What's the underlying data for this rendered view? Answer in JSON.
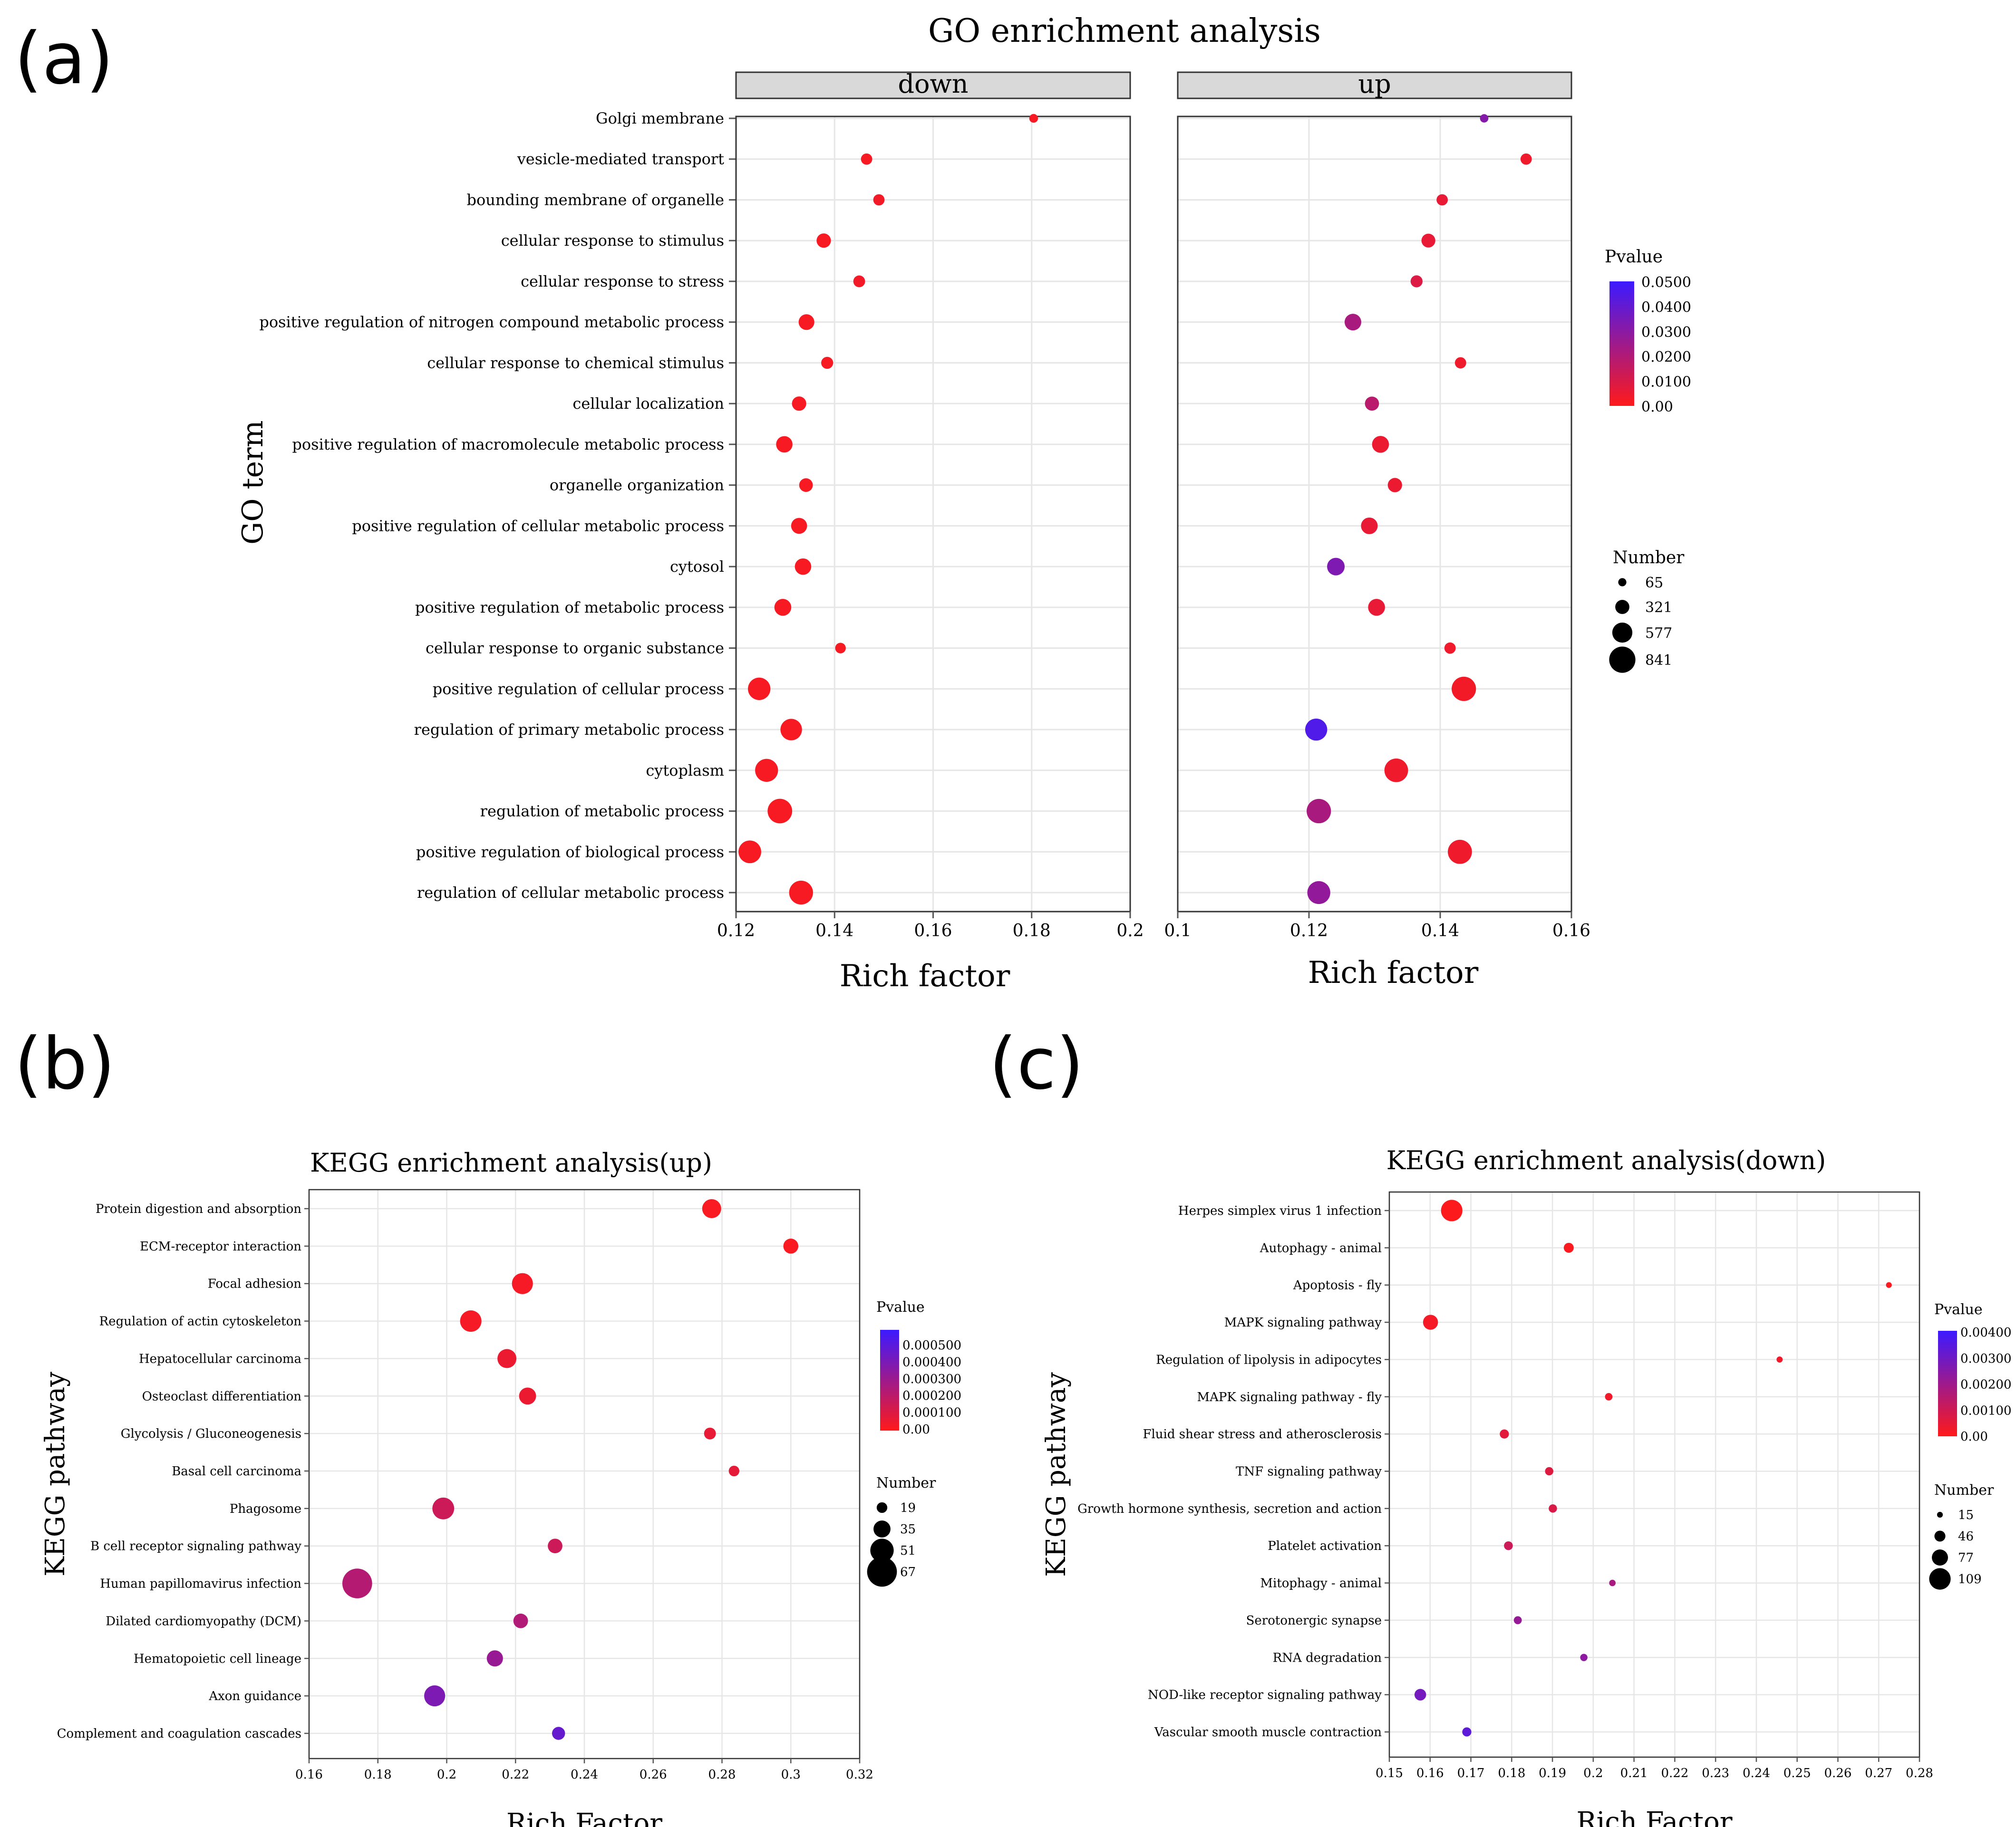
{
  "panel_labels": [
    "(a)",
    "(b)",
    "(c)"
  ],
  "colors": {
    "low_p": "#ff1a1a",
    "high_p": "#3c1aff",
    "strip_bg": "#d9d9d9",
    "grid": "#e6e6e6"
  },
  "chart_data": [
    {
      "type": "scatter",
      "title": "GO enrichment analysis",
      "ylabel": "GO term",
      "xlabel": "Rich factor",
      "facets": [
        {
          "name": "down",
          "xlim": [
            0.12,
            0.2
          ],
          "xticks": [
            0.12,
            0.14,
            0.16,
            0.18,
            0.2
          ],
          "xtick_labels": [
            "0.12",
            "0.14",
            "0.16",
            "0.18",
            "0.2"
          ],
          "points": [
            {
              "term": "Golgi membrane",
              "x": 0.1804,
              "number": 90,
              "p": 0.002
            },
            {
              "term": "vesicle-mediated transport",
              "x": 0.1465,
              "number": 200,
              "p": 0.002
            },
            {
              "term": "bounding membrane of organelle",
              "x": 0.149,
              "number": 200,
              "p": 0.003
            },
            {
              "term": "cellular response to stimulus",
              "x": 0.1378,
              "number": 330,
              "p": 0.002
            },
            {
              "term": "cellular response to stress",
              "x": 0.145,
              "number": 220,
              "p": 0.003
            },
            {
              "term": "positive regulation of nitrogen compound metabolic process",
              "x": 0.1343,
              "number": 390,
              "p": 0.002
            },
            {
              "term": "cellular response to chemical stimulus",
              "x": 0.1385,
              "number": 230,
              "p": 0.002
            },
            {
              "term": "cellular localization",
              "x": 0.1328,
              "number": 330,
              "p": 0.002
            },
            {
              "term": "positive regulation of macromolecule metabolic process",
              "x": 0.1298,
              "number": 420,
              "p": 0.002
            },
            {
              "term": "organelle organization",
              "x": 0.1342,
              "number": 300,
              "p": 0.002
            },
            {
              "term": "positive regulation of cellular metabolic process",
              "x": 0.1328,
              "number": 400,
              "p": 0.002
            },
            {
              "term": "cytosol",
              "x": 0.1336,
              "number": 420,
              "p": 0.002
            },
            {
              "term": "positive regulation of metabolic process",
              "x": 0.1295,
              "number": 440,
              "p": 0.002
            },
            {
              "term": "cellular response to organic substance",
              "x": 0.1412,
              "number": 170,
              "p": 0.002
            },
            {
              "term": "positive regulation of cellular process",
              "x": 0.1247,
              "number": 680,
              "p": 0.002
            },
            {
              "term": "regulation of primary metabolic process",
              "x": 0.1312,
              "number": 640,
              "p": 0.002
            },
            {
              "term": "cytoplasm",
              "x": 0.1262,
              "number": 700,
              "p": 0.002
            },
            {
              "term": "regulation of metabolic process",
              "x": 0.1289,
              "number": 770,
              "p": 0.002
            },
            {
              "term": "positive regulation of biological process",
              "x": 0.1228,
              "number": 690,
              "p": 0.002
            },
            {
              "term": "regulation of cellular metabolic process",
              "x": 0.1332,
              "number": 740,
              "p": 0.002
            }
          ]
        },
        {
          "name": "up",
          "xlim": [
            0.1,
            0.16
          ],
          "xticks": [
            0.1,
            0.12,
            0.14,
            0.16
          ],
          "xtick_labels": [
            "0.1",
            "0.12",
            "0.14",
            "0.16"
          ],
          "points": [
            {
              "term": "Golgi membrane",
              "x": 0.1467,
              "number": 75,
              "p": 0.031
            },
            {
              "term": "vesicle-mediated transport",
              "x": 0.1531,
              "number": 200,
              "p": 0.004
            },
            {
              "term": "bounding membrane of organelle",
              "x": 0.1403,
              "number": 200,
              "p": 0.006
            },
            {
              "term": "cellular response to stimulus",
              "x": 0.1382,
              "number": 310,
              "p": 0.006
            },
            {
              "term": "cellular response to stress",
              "x": 0.1364,
              "number": 230,
              "p": 0.009
            },
            {
              "term": "positive regulation of nitrogen compound metabolic process",
              "x": 0.1267,
              "number": 430,
              "p": 0.022
            },
            {
              "term": "cellular response to chemical stimulus",
              "x": 0.1431,
              "number": 200,
              "p": 0.004
            },
            {
              "term": "cellular localization",
              "x": 0.1296,
              "number": 320,
              "p": 0.018
            },
            {
              "term": "positive regulation of macromolecule metabolic process",
              "x": 0.1309,
              "number": 440,
              "p": 0.005
            },
            {
              "term": "organelle organization",
              "x": 0.1331,
              "number": 330,
              "p": 0.005
            },
            {
              "term": "positive regulation of cellular metabolic process",
              "x": 0.1292,
              "number": 430,
              "p": 0.006
            },
            {
              "term": "cytosol",
              "x": 0.1241,
              "number": 470,
              "p": 0.033
            },
            {
              "term": "positive regulation of metabolic process",
              "x": 0.1303,
              "number": 440,
              "p": 0.006
            },
            {
              "term": "cellular response to organic substance",
              "x": 0.1415,
              "number": 200,
              "p": 0.004
            },
            {
              "term": "positive regulation of cellular process",
              "x": 0.1436,
              "number": 760,
              "p": 0.003
            },
            {
              "term": "regulation of primary metabolic process",
              "x": 0.1211,
              "number": 660,
              "p": 0.045
            },
            {
              "term": "cytoplasm",
              "x": 0.1333,
              "number": 730,
              "p": 0.004
            },
            {
              "term": "regulation of metabolic process",
              "x": 0.1215,
              "number": 760,
              "p": 0.022
            },
            {
              "term": "positive regulation of biological process",
              "x": 0.143,
              "number": 750,
              "p": 0.004
            },
            {
              "term": "regulation of cellular metabolic process",
              "x": 0.1215,
              "number": 700,
              "p": 0.028
            }
          ]
        }
      ],
      "legend": {
        "color_title": "Pvalue",
        "color_range": [
          0,
          0.05
        ],
        "color_labels": [
          "0.0500",
          "0.0400",
          "0.0300",
          "0.0200",
          "0.0100",
          "0.00"
        ],
        "size_title": "Number",
        "size_values": [
          65,
          321,
          577,
          841
        ],
        "size_labels": [
          "65",
          "321",
          "577",
          "841"
        ]
      }
    },
    {
      "type": "scatter",
      "title": "KEGG enrichment analysis(up)",
      "ylabel": "KEGG pathway",
      "xlabel": "Rich Factor",
      "xlim": [
        0.16,
        0.32
      ],
      "xticks": [
        0.16,
        0.18,
        0.2,
        0.22,
        0.24,
        0.26,
        0.28,
        0.3,
        0.32
      ],
      "xtick_labels": [
        "0.16",
        "0.18",
        "0.2",
        "0.22",
        "0.24",
        "0.26",
        "0.28",
        "0.3",
        "0.32"
      ],
      "points": [
        {
          "term": "Protein digestion and absorption",
          "x": 0.277,
          "number": 40,
          "p": 2e-05
        },
        {
          "term": "ECM-receptor interaction",
          "x": 0.3,
          "number": 30,
          "p": 2e-05
        },
        {
          "term": "Focal adhesion",
          "x": 0.222,
          "number": 45,
          "p": 3e-05
        },
        {
          "term": "Regulation of actin cytoskeleton",
          "x": 0.207,
          "number": 46,
          "p": 3e-05
        },
        {
          "term": "Hepatocellular carcinoma",
          "x": 0.2175,
          "number": 40,
          "p": 6e-05
        },
        {
          "term": "Osteoclast differentiation",
          "x": 0.2235,
          "number": 35,
          "p": 6e-05
        },
        {
          "term": "Glycolysis / Gluconeogenesis",
          "x": 0.2765,
          "number": 22,
          "p": 7e-05
        },
        {
          "term": "Basal cell carcinoma",
          "x": 0.2835,
          "number": 19,
          "p": 8e-05
        },
        {
          "term": "Phagosome",
          "x": 0.199,
          "number": 47,
          "p": 0.00016
        },
        {
          "term": "B cell receptor signaling pathway",
          "x": 0.2315,
          "number": 29,
          "p": 0.00016
        },
        {
          "term": "Human papillomavirus infection",
          "x": 0.174,
          "number": 67,
          "p": 0.00023
        },
        {
          "term": "Dilated cardiomyopathy (DCM)",
          "x": 0.2215,
          "number": 29,
          "p": 0.00024
        },
        {
          "term": "Hematopoietic cell lineage",
          "x": 0.214,
          "number": 33,
          "p": 0.00032
        },
        {
          "term": "Axon guidance",
          "x": 0.1965,
          "number": 45,
          "p": 0.0004
        },
        {
          "term": "Complement and coagulation cascades",
          "x": 0.2325,
          "number": 25,
          "p": 0.00047
        }
      ],
      "legend": {
        "color_title": "Pvalue",
        "color_range": [
          0,
          0.0006
        ],
        "color_labels": [
          "0.000500",
          "0.000400",
          "0.000300",
          "0.000200",
          "0.000100",
          "0.00"
        ],
        "size_title": "Number",
        "size_values": [
          19,
          35,
          51,
          67
        ],
        "size_labels": [
          "19",
          "35",
          "51",
          "67"
        ]
      }
    },
    {
      "type": "scatter",
      "title": "KEGG enrichment analysis(down)",
      "ylabel": "KEGG pathway",
      "xlabel": "Rich Factor",
      "xlim": [
        0.15,
        0.28
      ],
      "xticks": [
        0.15,
        0.16,
        0.17,
        0.18,
        0.19,
        0.2,
        0.21,
        0.22,
        0.23,
        0.24,
        0.25,
        0.26,
        0.27,
        0.28
      ],
      "xtick_labels": [
        "0.15",
        "0.16",
        "0.17",
        "0.18",
        "0.19",
        "0.2",
        "0.21",
        "0.22",
        "0.23",
        "0.24",
        "0.25",
        "0.26",
        "0.27",
        "0.28"
      ],
      "points": [
        {
          "term": "Herpes simplex virus 1 infection",
          "x": 0.1653,
          "number": 109,
          "p": 5e-05
        },
        {
          "term": "Autophagy - animal",
          "x": 0.194,
          "number": 40,
          "p": 0.0001
        },
        {
          "term": "Apoptosis - fly",
          "x": 0.2725,
          "number": 15,
          "p": 0.0001
        },
        {
          "term": "MAPK signaling pathway",
          "x": 0.1601,
          "number": 70,
          "p": 0.0002
        },
        {
          "term": "Regulation of lipolysis in adipocytes",
          "x": 0.2457,
          "number": 17,
          "p": 0.0003
        },
        {
          "term": "MAPK signaling pathway - fly",
          "x": 0.2038,
          "number": 25,
          "p": 0.0003
        },
        {
          "term": "Fluid shear stress and atherosclerosis",
          "x": 0.1782,
          "number": 35,
          "p": 0.0006
        },
        {
          "term": "TNF signaling pathway",
          "x": 0.1892,
          "number": 30,
          "p": 0.0007
        },
        {
          "term": "Growth hormone synthesis, secretion and action",
          "x": 0.1901,
          "number": 30,
          "p": 0.0008
        },
        {
          "term": "Platelet activation",
          "x": 0.1792,
          "number": 33,
          "p": 0.0011
        },
        {
          "term": "Mitophagy - animal",
          "x": 0.2047,
          "number": 19,
          "p": 0.0018
        },
        {
          "term": "Serotonergic synapse",
          "x": 0.1815,
          "number": 28,
          "p": 0.0022
        },
        {
          "term": "RNA degradation",
          "x": 0.1977,
          "number": 24,
          "p": 0.0024
        },
        {
          "term": "NOD-like receptor signaling pathway",
          "x": 0.1576,
          "number": 50,
          "p": 0.0029
        },
        {
          "term": "Vascular smooth muscle contraction",
          "x": 0.169,
          "number": 35,
          "p": 0.0034
        }
      ],
      "legend": {
        "color_title": "Pvalue",
        "color_range": [
          0,
          0.0041
        ],
        "color_labels": [
          "0.00400",
          "0.00300",
          "0.00200",
          "0.00100",
          "0.00"
        ],
        "size_title": "Number",
        "size_values": [
          15,
          46,
          77,
          109
        ],
        "size_labels": [
          "15",
          "46",
          "77",
          "109"
        ]
      }
    }
  ]
}
